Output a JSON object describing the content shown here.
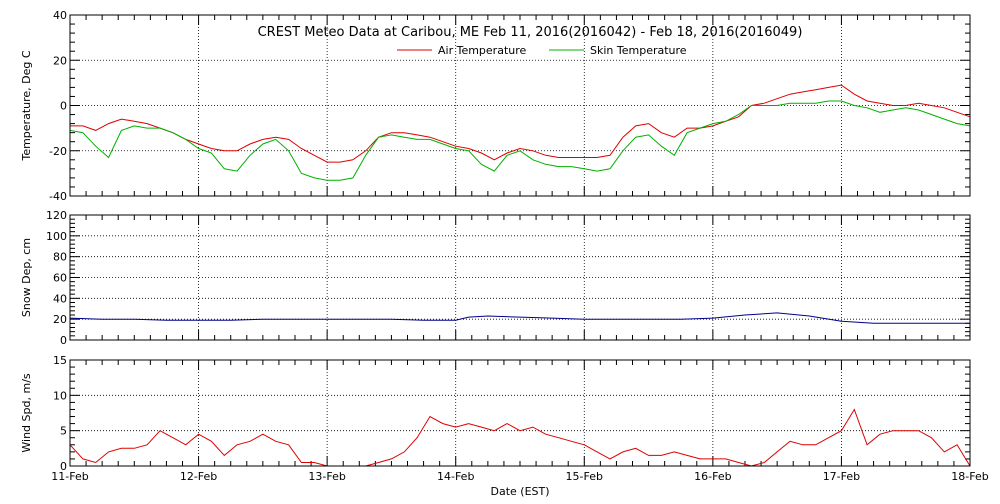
{
  "chart_data": {
    "title": "CREST Meteo Data at Caribou, ME   Feb 11, 2016(2016042) - Feb 18, 2016(2016049)",
    "xlabel": "Date (EST)",
    "x_tick_labels": [
      "11-Feb",
      "12-Feb",
      "13-Feb",
      "14-Feb",
      "15-Feb",
      "16-Feb",
      "17-Feb",
      "18-Feb"
    ],
    "x_range_days": [
      0,
      7
    ],
    "panels": [
      {
        "type": "line",
        "ylabel": "Temperature, Deg C",
        "ylim": [
          -40,
          40
        ],
        "y_ticks": [
          -40,
          -20,
          0,
          20,
          40
        ],
        "legend": "top-center",
        "series": [
          {
            "name": "Air Temperature",
            "color": "#dd0000",
            "x": [
              0,
              0.1,
              0.2,
              0.3,
              0.4,
              0.5,
              0.6,
              0.7,
              0.8,
              0.9,
              1.0,
              1.1,
              1.2,
              1.3,
              1.4,
              1.5,
              1.6,
              1.7,
              1.8,
              1.9,
              2.0,
              2.1,
              2.2,
              2.3,
              2.4,
              2.5,
              2.6,
              2.7,
              2.8,
              2.9,
              3.0,
              3.1,
              3.2,
              3.3,
              3.4,
              3.5,
              3.6,
              3.7,
              3.8,
              3.9,
              4.0,
              4.1,
              4.2,
              4.3,
              4.4,
              4.5,
              4.6,
              4.7,
              4.8,
              4.9,
              5.0,
              5.1,
              5.2,
              5.3,
              5.4,
              5.5,
              5.6,
              5.7,
              5.8,
              5.9,
              6.0,
              6.1,
              6.2,
              6.3,
              6.4,
              6.5,
              6.6,
              6.7,
              6.8,
              6.9,
              7.0
            ],
            "values": [
              -9,
              -9,
              -11,
              -8,
              -6,
              -7,
              -8,
              -10,
              -12,
              -15,
              -17,
              -19,
              -20,
              -20,
              -17,
              -15,
              -14,
              -15,
              -19,
              -22,
              -25,
              -25,
              -24,
              -20,
              -14,
              -12,
              -12,
              -13,
              -14,
              -16,
              -18,
              -19,
              -21,
              -24,
              -21,
              -19,
              -20,
              -22,
              -23,
              -23,
              -23,
              -23,
              -22,
              -14,
              -9,
              -8,
              -12,
              -14,
              -10,
              -10,
              -9,
              -7,
              -5,
              0,
              1,
              3,
              5,
              6,
              7,
              8,
              9,
              5,
              2,
              1,
              0,
              0,
              1,
              0,
              -1,
              -3,
              -5
            ]
          },
          {
            "name": "Skin Temperature",
            "color": "#00b000",
            "x": [
              0,
              0.1,
              0.2,
              0.3,
              0.4,
              0.5,
              0.6,
              0.7,
              0.8,
              0.9,
              1.0,
              1.1,
              1.2,
              1.3,
              1.4,
              1.5,
              1.6,
              1.7,
              1.8,
              1.9,
              2.0,
              2.1,
              2.2,
              2.3,
              2.4,
              2.5,
              2.6,
              2.7,
              2.8,
              2.9,
              3.0,
              3.1,
              3.2,
              3.3,
              3.4,
              3.5,
              3.6,
              3.7,
              3.8,
              3.9,
              4.0,
              4.1,
              4.2,
              4.3,
              4.4,
              4.5,
              4.6,
              4.7,
              4.8,
              4.9,
              5.0,
              5.1,
              5.2,
              5.3,
              5.4,
              5.5,
              5.6,
              5.7,
              5.8,
              5.9,
              6.0,
              6.1,
              6.2,
              6.3,
              6.4,
              6.5,
              6.6,
              6.7,
              6.8,
              6.9,
              7.0
            ],
            "values": [
              -11,
              -12,
              -18,
              -23,
              -11,
              -9,
              -10,
              -10,
              -12,
              -15,
              -19,
              -21,
              -28,
              -29,
              -22,
              -17,
              -15,
              -20,
              -30,
              -32,
              -33,
              -33,
              -32,
              -22,
              -14,
              -13,
              -14,
              -15,
              -15,
              -17,
              -19,
              -20,
              -26,
              -29,
              -22,
              -20,
              -24,
              -26,
              -27,
              -27,
              -28,
              -29,
              -28,
              -20,
              -14,
              -13,
              -18,
              -22,
              -12,
              -10,
              -8,
              -7,
              -4,
              0,
              0,
              0,
              1,
              1,
              1,
              2,
              2,
              0,
              -1,
              -3,
              -2,
              -1,
              -2,
              -4,
              -6,
              -8,
              -9
            ]
          }
        ]
      },
      {
        "type": "line",
        "ylabel": "Snow Dep, cm",
        "ylim": [
          0,
          120
        ],
        "y_ticks": [
          0,
          20,
          40,
          60,
          80,
          100,
          120
        ],
        "series": [
          {
            "name": "",
            "color": "#00008b",
            "x": [
              0,
              0.25,
              0.5,
              0.75,
              1.0,
              1.25,
              1.5,
              1.75,
              2.0,
              2.25,
              2.5,
              2.75,
              3.0,
              3.1,
              3.25,
              3.5,
              3.75,
              4.0,
              4.25,
              4.5,
              4.75,
              5.0,
              5.25,
              5.5,
              5.75,
              6.0,
              6.25,
              6.5,
              6.75,
              7.0
            ],
            "values": [
              21,
              20,
              20,
              19,
              19,
              19,
              20,
              20,
              20,
              20,
              20,
              19,
              19,
              22,
              23,
              22,
              21,
              20,
              20,
              20,
              20,
              21,
              24,
              26,
              23,
              18,
              16,
              16,
              16,
              16
            ]
          }
        ]
      },
      {
        "type": "line",
        "ylabel": "Wind Spd, m/s",
        "ylim": [
          0,
          15
        ],
        "y_ticks": [
          0,
          5,
          10,
          15
        ],
        "series": [
          {
            "name": "",
            "color": "#dd0000",
            "x": [
              0,
              0.1,
              0.2,
              0.3,
              0.4,
              0.5,
              0.6,
              0.7,
              0.8,
              0.9,
              1.0,
              1.1,
              1.2,
              1.3,
              1.4,
              1.5,
              1.6,
              1.7,
              1.8,
              1.9,
              2.0,
              2.1,
              2.2,
              2.3,
              2.4,
              2.5,
              2.6,
              2.7,
              2.8,
              2.9,
              3.0,
              3.1,
              3.2,
              3.3,
              3.4,
              3.5,
              3.6,
              3.7,
              3.8,
              3.9,
              4.0,
              4.1,
              4.2,
              4.3,
              4.4,
              4.5,
              4.6,
              4.7,
              4.8,
              4.9,
              5.0,
              5.1,
              5.2,
              5.3,
              5.4,
              5.5,
              5.6,
              5.7,
              5.8,
              5.9,
              6.0,
              6.1,
              6.2,
              6.3,
              6.4,
              6.5,
              6.6,
              6.7,
              6.8,
              6.9,
              7.0
            ],
            "values": [
              3,
              1,
              0.5,
              2,
              2.5,
              2.5,
              3,
              5,
              4,
              3,
              4.5,
              3.5,
              1.5,
              3,
              3.5,
              4.5,
              3.5,
              3,
              0.5,
              0.5,
              0,
              0,
              0,
              0,
              0.5,
              1,
              2,
              4,
              7,
              6,
              5.5,
              6,
              5.5,
              5,
              6,
              5,
              5.5,
              4.5,
              4,
              3.5,
              3,
              2,
              1,
              2,
              2.5,
              1.5,
              1.5,
              2,
              1.5,
              1,
              1,
              1,
              0.5,
              0,
              0.5,
              2,
              3.5,
              3,
              3,
              4,
              5,
              8,
              3,
              4.5,
              5,
              5,
              5,
              4,
              2,
              3,
              0
            ]
          }
        ]
      }
    ]
  }
}
